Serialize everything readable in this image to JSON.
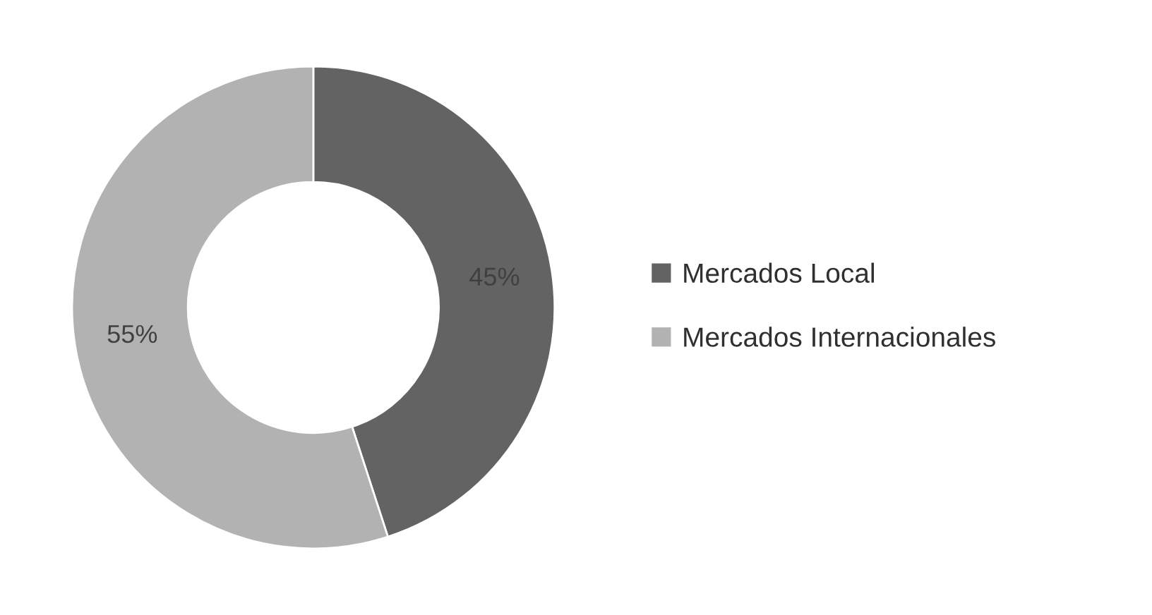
{
  "chart_data": {
    "type": "donut",
    "categories": [
      "Mercados Local",
      "Mercados Internacionales"
    ],
    "values": [
      45,
      55
    ],
    "colors": [
      "#636363",
      "#b2b2b2"
    ],
    "value_labels": [
      "45%",
      "55%"
    ],
    "legend": "right"
  }
}
